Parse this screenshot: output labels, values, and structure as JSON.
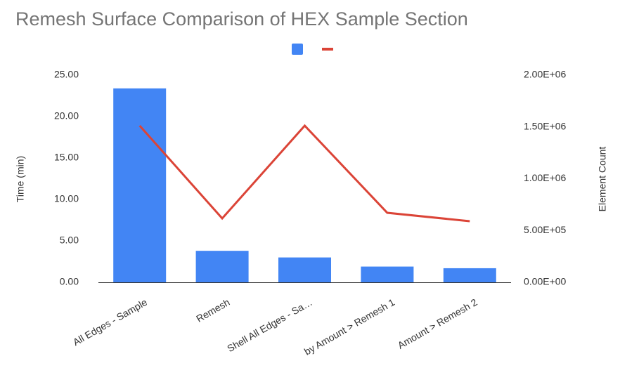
{
  "chart_data": {
    "type": "bar-line",
    "title": "Remesh Surface Comparison of HEX Sample Section",
    "categories": [
      "All Edges - Sample",
      "Remesh",
      "Shell  All Edges - Sa…",
      "by Amount > Remesh 1",
      "Amount > Remesh 2"
    ],
    "series": [
      {
        "type": "bar",
        "color": "#4285f4",
        "values": [
          23.4,
          3.8,
          3.0,
          1.9,
          1.7
        ]
      },
      {
        "type": "line",
        "axis": "y2",
        "color": "#db4437",
        "values": [
          1512000,
          617000,
          1512000,
          671000,
          590000
        ]
      }
    ],
    "ylabel": "Time (min)",
    "y2label": "Element Count",
    "ylim": [
      0,
      25
    ],
    "yticks": [
      {
        "value": 0,
        "label": "0.00"
      },
      {
        "value": 5,
        "label": "5.00"
      },
      {
        "value": 10,
        "label": "10.00"
      },
      {
        "value": 15,
        "label": "15.00"
      },
      {
        "value": 20,
        "label": "20.00"
      },
      {
        "value": 25,
        "label": "25.00"
      }
    ],
    "y2lim": [
      0,
      2000000
    ],
    "y2ticks": [
      {
        "value": 0,
        "label": "0.00E+00"
      },
      {
        "value": 500000,
        "label": "5.00E+05"
      },
      {
        "value": 1000000,
        "label": "1.00E+06"
      },
      {
        "value": 1500000,
        "label": "1.50E+06"
      },
      {
        "value": 2000000,
        "label": "2.00E+06"
      }
    ],
    "grid": false
  }
}
